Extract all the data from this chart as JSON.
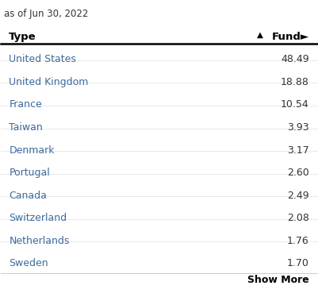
{
  "subtitle": "as of Jun 30, 2022",
  "col1_header": "Type",
  "col2_header": "Fund►",
  "sort_arrow": "▲",
  "rows": [
    [
      "United States",
      "48.49"
    ],
    [
      "United Kingdom",
      "18.88"
    ],
    [
      "France",
      "10.54"
    ],
    [
      "Taiwan",
      "3.93"
    ],
    [
      "Denmark",
      "3.17"
    ],
    [
      "Portugal",
      "2.60"
    ],
    [
      "Canada",
      "2.49"
    ],
    [
      "Switzerland",
      "2.08"
    ],
    [
      "Netherlands",
      "1.76"
    ],
    [
      "Sweden",
      "1.70"
    ]
  ],
  "show_more_text": "Show More",
  "bg_color": "#ffffff",
  "text_color_type": "#3d6b9e",
  "text_color_value": "#333333",
  "text_color_header": "#000000",
  "text_color_subtitle": "#333333",
  "header_line_color": "#000000",
  "bottom_line_color": "#cccccc",
  "row_line_color": "#e0e0e0",
  "show_more_color": "#000000",
  "subtitle_fontsize": 8.5,
  "header_fontsize": 9.5,
  "row_fontsize": 9.0,
  "show_more_fontsize": 9.0
}
